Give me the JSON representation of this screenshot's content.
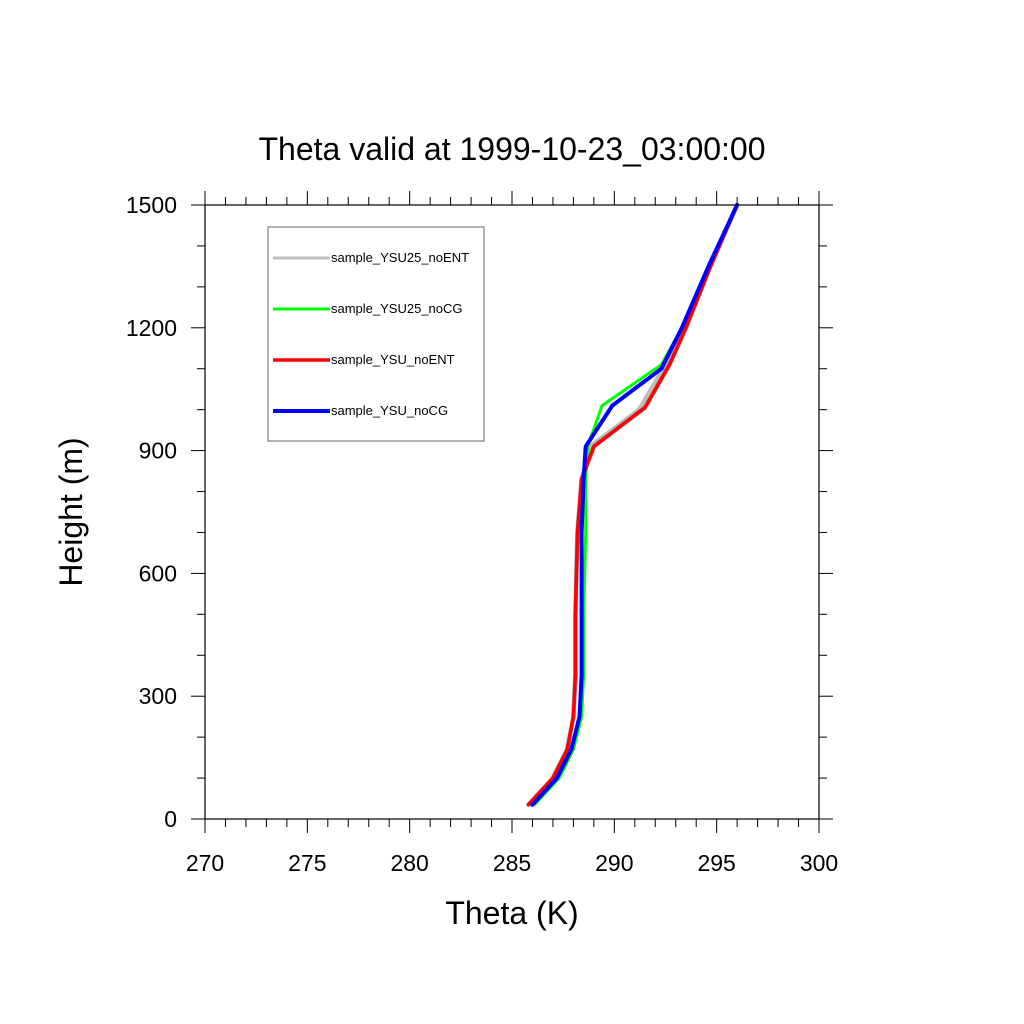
{
  "chart_data": {
    "type": "line",
    "title": "Theta valid at 1999-10-23_03:00:00",
    "xlabel": "Theta (K)",
    "ylabel": "Height (m)",
    "xlim": [
      270,
      300
    ],
    "ylim": [
      0,
      1500
    ],
    "xticks": [
      270,
      275,
      280,
      285,
      290,
      295,
      300
    ],
    "yticks": [
      0,
      300,
      600,
      900,
      1200,
      1500
    ],
    "x_minor_step": 1,
    "y_minor_step": 100,
    "grid": false,
    "legend_position": "top-left",
    "series": [
      {
        "name": "sample_YSU25_noENT",
        "color": "#bebebe",
        "points": [
          [
            285.9,
            35
          ],
          [
            287.0,
            100
          ],
          [
            287.7,
            170
          ],
          [
            288.0,
            250
          ],
          [
            288.1,
            350
          ],
          [
            288.1,
            500
          ],
          [
            288.2,
            700
          ],
          [
            288.4,
            830
          ],
          [
            288.8,
            910
          ],
          [
            291.2,
            1000
          ],
          [
            292.5,
            1110
          ],
          [
            293.3,
            1200
          ],
          [
            294.6,
            1350
          ],
          [
            296.0,
            1500
          ]
        ]
      },
      {
        "name": "sample_YSU25_noCG",
        "color": "#00ff00",
        "points": [
          [
            286.1,
            35
          ],
          [
            287.3,
            100
          ],
          [
            288.0,
            170
          ],
          [
            288.4,
            250
          ],
          [
            288.5,
            350
          ],
          [
            288.5,
            500
          ],
          [
            288.6,
            700
          ],
          [
            288.6,
            830
          ],
          [
            288.7,
            910
          ],
          [
            289.4,
            1010
          ],
          [
            292.3,
            1110
          ],
          [
            293.3,
            1200
          ],
          [
            294.6,
            1350
          ],
          [
            296.0,
            1500
          ]
        ]
      },
      {
        "name": "sample_YSU_noENT",
        "color": "#ff0000",
        "points": [
          [
            285.8,
            35
          ],
          [
            287.0,
            100
          ],
          [
            287.7,
            170
          ],
          [
            288.0,
            250
          ],
          [
            288.1,
            350
          ],
          [
            288.1,
            500
          ],
          [
            288.2,
            700
          ],
          [
            288.4,
            830
          ],
          [
            289.0,
            910
          ],
          [
            291.5,
            1005
          ],
          [
            292.7,
            1110
          ],
          [
            293.5,
            1200
          ],
          [
            294.7,
            1350
          ],
          [
            296.0,
            1500
          ]
        ]
      },
      {
        "name": "sample_YSU_noCG",
        "color": "#0000ff",
        "points": [
          [
            286.0,
            35
          ],
          [
            287.2,
            100
          ],
          [
            287.9,
            170
          ],
          [
            288.3,
            250
          ],
          [
            288.4,
            350
          ],
          [
            288.4,
            500
          ],
          [
            288.4,
            700
          ],
          [
            288.5,
            830
          ],
          [
            288.6,
            910
          ],
          [
            289.9,
            1010
          ],
          [
            292.3,
            1100
          ],
          [
            293.3,
            1200
          ],
          [
            294.6,
            1350
          ],
          [
            296.0,
            1500
          ]
        ]
      }
    ]
  }
}
